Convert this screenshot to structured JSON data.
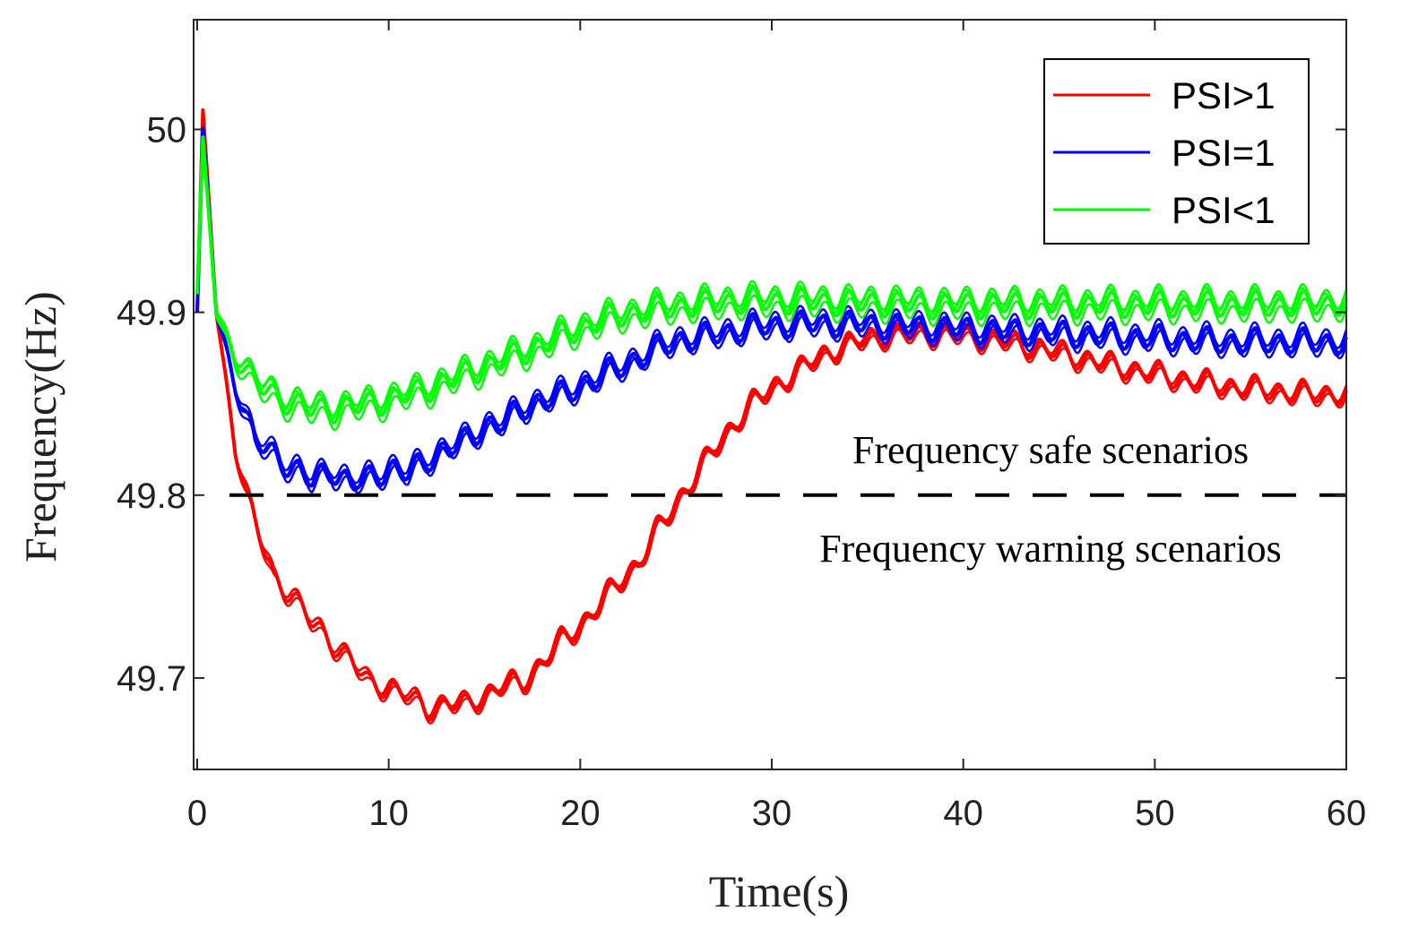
{
  "chart_data": {
    "type": "line",
    "title": "",
    "xlabel": "Time(s)",
    "ylabel": "Frequency(Hz)",
    "xlim": [
      0,
      60
    ],
    "ylim": [
      49.65,
      50.06
    ],
    "xticks": [
      0,
      10,
      20,
      30,
      40,
      50,
      60
    ],
    "xtick_labels": [
      "0",
      "10",
      "20",
      "30",
      "40",
      "50",
      "60"
    ],
    "yticks": [
      49.7,
      49.8,
      49.9,
      50
    ],
    "ytick_labels": [
      "49.7",
      "49.8",
      "49.9",
      "50"
    ],
    "grid": false,
    "legend_position": "top-right",
    "threshold": {
      "y": 49.8,
      "style": "dashed",
      "color": "#000000"
    },
    "annotations": [
      {
        "text": "Frequency safe scenarios",
        "position": "above threshold, right"
      },
      {
        "text": "Frequency warning scenarios",
        "position": "below threshold, right"
      }
    ],
    "series": [
      {
        "name": "PSI>1",
        "color": "#ff0000",
        "x": [
          0,
          0.3,
          1,
          2,
          3,
          4,
          5,
          6,
          7,
          8,
          9,
          10,
          11,
          12,
          13,
          14,
          15,
          16,
          17,
          18,
          19,
          20,
          21,
          22,
          23,
          24,
          25,
          26,
          27,
          28,
          29,
          30,
          31,
          32,
          33,
          34,
          35,
          36,
          38,
          40,
          42,
          44,
          46,
          48,
          50,
          52,
          54,
          56,
          58,
          60
        ],
        "y": [
          49.9,
          50.01,
          49.9,
          49.825,
          49.785,
          49.755,
          49.745,
          49.73,
          49.72,
          49.71,
          49.697,
          49.695,
          49.69,
          49.683,
          49.686,
          49.685,
          49.69,
          49.696,
          49.697,
          49.708,
          49.72,
          49.728,
          49.74,
          49.752,
          49.762,
          49.78,
          49.795,
          49.81,
          49.825,
          49.838,
          49.85,
          49.858,
          49.865,
          49.872,
          49.878,
          49.882,
          49.885,
          49.887,
          49.888,
          49.887,
          49.884,
          49.88,
          49.875,
          49.87,
          49.866,
          49.862,
          49.859,
          49.857,
          49.855,
          49.855
        ]
      },
      {
        "name": "PSI=1",
        "color": "#0000ff",
        "x": [
          0,
          0.3,
          1,
          2,
          3,
          4,
          5,
          6,
          7,
          8,
          9,
          10,
          11,
          12,
          13,
          14,
          15,
          16,
          17,
          18,
          19,
          20,
          21,
          22,
          23,
          24,
          25,
          26,
          27,
          28,
          29,
          30,
          32,
          34,
          36,
          38,
          40,
          42,
          44,
          46,
          48,
          50,
          52,
          54,
          56,
          58,
          60
        ],
        "y": [
          49.9,
          50.0,
          49.9,
          49.86,
          49.83,
          49.823,
          49.815,
          49.808,
          49.815,
          49.806,
          49.81,
          49.815,
          49.812,
          49.82,
          49.825,
          49.83,
          49.838,
          49.84,
          49.848,
          49.852,
          49.855,
          49.86,
          49.865,
          49.87,
          49.875,
          49.88,
          49.885,
          49.886,
          49.888,
          49.89,
          49.892,
          49.893,
          49.894,
          49.894,
          49.893,
          49.892,
          49.891,
          49.89,
          49.889,
          49.888,
          49.887,
          49.886,
          49.885,
          49.884,
          49.884,
          49.884,
          49.884
        ]
      },
      {
        "name": "PSI<1",
        "color": "#00ff00",
        "x": [
          0,
          0.3,
          1,
          2,
          3,
          4,
          5,
          6,
          7,
          8,
          9,
          10,
          11,
          12,
          13,
          14,
          15,
          16,
          17,
          18,
          19,
          20,
          21,
          22,
          23,
          24,
          25,
          26,
          27,
          28,
          29,
          30,
          32,
          34,
          36,
          38,
          40,
          42,
          44,
          46,
          48,
          50,
          52,
          54,
          56,
          58,
          60
        ],
        "y": [
          49.91,
          49.995,
          49.9,
          49.875,
          49.862,
          49.855,
          49.85,
          49.847,
          49.847,
          49.848,
          49.85,
          49.852,
          49.855,
          49.858,
          49.862,
          49.866,
          49.87,
          49.874,
          49.878,
          49.882,
          49.887,
          49.891,
          49.895,
          49.898,
          49.9,
          49.902,
          49.903,
          49.904,
          49.905,
          49.906,
          49.906,
          49.906,
          49.906,
          49.905,
          49.905,
          49.904,
          49.904,
          49.904,
          49.904,
          49.904,
          49.904,
          49.904,
          49.904,
          49.904,
          49.904,
          49.904,
          49.905
        ]
      }
    ]
  }
}
